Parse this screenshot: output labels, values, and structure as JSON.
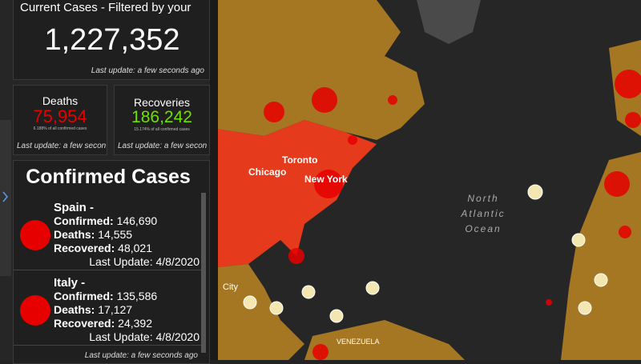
{
  "current": {
    "title": "Current Cases - Filtered by your",
    "value": "1,227,352",
    "updated": "Last update: a few seconds ago"
  },
  "deaths": {
    "title": "Deaths",
    "value": "75,954",
    "note": "6.188% of all confirmed cases",
    "updated": "Last update: a few secon"
  },
  "recoveries": {
    "title": "Recoveries",
    "value": "186,242",
    "note": "15.174% of all confirmed cases",
    "updated": "Last update: a few secon"
  },
  "confirmed_cases": {
    "title": "Confirmed Cases",
    "items": [
      {
        "name": "Spain -",
        "rows": [
          {
            "label": "Confirmed:",
            "value": "146,690"
          },
          {
            "label": "Deaths:",
            "value": "14,555"
          },
          {
            "label": "Recovered:",
            "value": "48,021"
          }
        ],
        "last_update": "Last Update: 4/8/2020"
      },
      {
        "name": "Italy -",
        "rows": [
          {
            "label": "Confirmed:",
            "value": "135,586"
          },
          {
            "label": "Deaths:",
            "value": "17,127"
          },
          {
            "label": "Recovered:",
            "value": "24,392"
          }
        ],
        "last_update": "Last Update: 4/8/2020"
      }
    ],
    "updated": "Last update: a few seconds ago"
  },
  "map": {
    "labels": [
      "Chicago",
      "Toronto",
      "New York",
      "City",
      "VENEZUELA"
    ],
    "ocean": [
      "North",
      "Atlantic",
      "Ocean"
    ]
  }
}
